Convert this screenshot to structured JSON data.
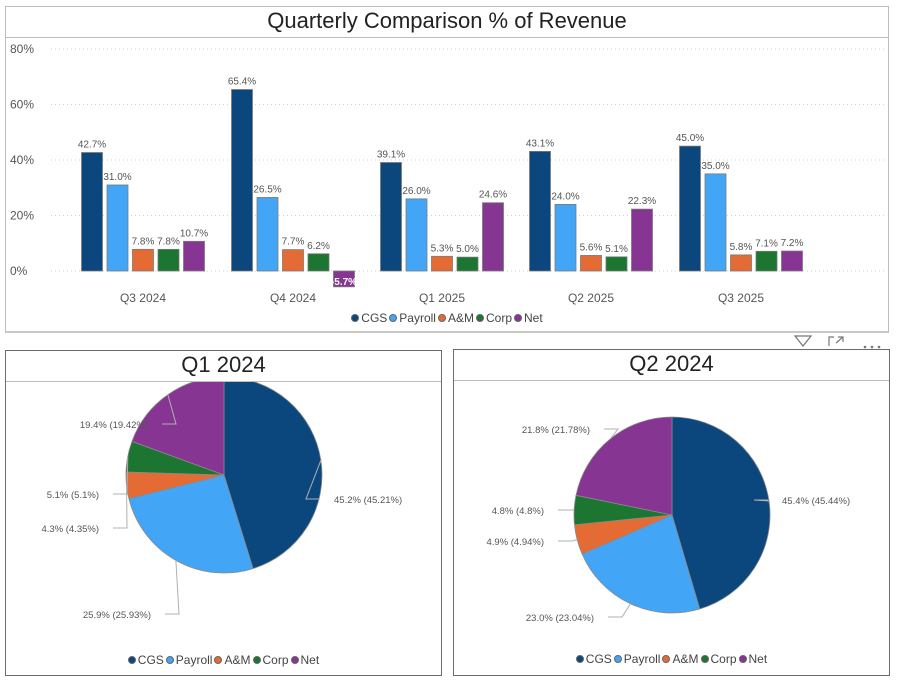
{
  "colors": {
    "CGS": "#0b467c",
    "Payroll": "#42a5f5",
    "A&M": "#e46b34",
    "Corp": "#1c7530",
    "Net": "#873593"
  },
  "toolbar": {
    "filter_icon": "filter-icon",
    "focus_icon": "focus-mode-icon",
    "more_icon": "more-options-icon"
  },
  "chart_data": [
    {
      "type": "bar",
      "title": "Quarterly Comparison % of Revenue",
      "xlabel": "",
      "ylabel": "",
      "ylim": [
        -10,
        80
      ],
      "yticks": [
        0,
        20,
        40,
        60,
        80
      ],
      "ytick_labels": [
        "0%",
        "20%",
        "40%",
        "60%",
        "80%"
      ],
      "grid": true,
      "legend_position": "bottom-center",
      "categories": [
        "Q3 2024",
        "Q4 2024",
        "Q1 2025",
        "Q2 2025",
        "Q3 2025"
      ],
      "series": [
        {
          "name": "CGS",
          "values": [
            42.7,
            65.4,
            39.1,
            43.1,
            45.0
          ],
          "labels": [
            "42.7%",
            "65.4%",
            "39.1%",
            "43.1%",
            "45.0%"
          ]
        },
        {
          "name": "Payroll",
          "values": [
            31.0,
            26.5,
            26.0,
            24.0,
            35.0
          ],
          "labels": [
            "31.0%",
            "26.5%",
            "26.0%",
            "24.0%",
            "35.0%"
          ]
        },
        {
          "name": "A&M",
          "values": [
            7.8,
            7.7,
            5.3,
            5.6,
            5.8
          ],
          "labels": [
            "7.8%",
            "7.7%",
            "5.3%",
            "5.6%",
            "5.8%"
          ]
        },
        {
          "name": "Corp",
          "values": [
            7.8,
            6.2,
            5.0,
            5.1,
            7.1
          ],
          "labels": [
            "7.8%",
            "6.2%",
            "5.0%",
            "5.1%",
            "7.1%"
          ]
        },
        {
          "name": "Net",
          "values": [
            10.7,
            -5.7,
            24.6,
            22.3,
            7.2
          ],
          "labels": [
            "10.7%",
            "-5.7%",
            "24.6%",
            "22.3%",
            "7.2%"
          ]
        }
      ]
    },
    {
      "type": "pie",
      "title": "Q1 2024",
      "legend_position": "bottom-center",
      "categories": [
        "CGS",
        "Payroll",
        "A&M",
        "Corp",
        "Net"
      ],
      "values": [
        45.21,
        25.93,
        4.35,
        5.1,
        19.42
      ],
      "labels": [
        "45.2% (45.21%)",
        "25.9% (25.93%)",
        "4.3% (4.35%)",
        "5.1% (5.1%)",
        "19.4% (19.42%)"
      ]
    },
    {
      "type": "pie",
      "title": "Q2 2024",
      "legend_position": "bottom-center",
      "categories": [
        "CGS",
        "Payroll",
        "A&M",
        "Corp",
        "Net"
      ],
      "values": [
        45.44,
        23.04,
        4.94,
        4.8,
        21.78
      ],
      "labels": [
        "45.4% (45.44%)",
        "23.0% (23.04%)",
        "4.9% (4.94%)",
        "4.8% (4.8%)",
        "21.8% (21.78%)"
      ]
    }
  ]
}
